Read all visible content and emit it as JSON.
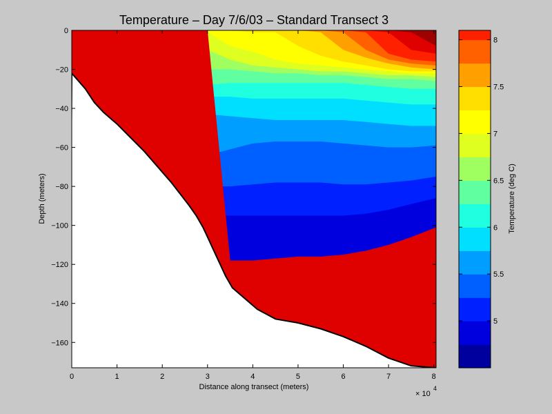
{
  "chart_data": [
    {
      "type": "contour",
      "title": "Temperature – Day 7/6/03 – Standard Transect 3",
      "xlabel": "Distance along transect (meters)",
      "ylabel": "Depth (meters)",
      "x_multiplier_label": "× 10",
      "x_multiplier_exponent": "4",
      "xlim": [
        0,
        80500
      ],
      "ylim": [
        -173,
        0
      ],
      "x_ticks": [
        0,
        10000,
        20000,
        30000,
        40000,
        50000,
        60000,
        70000,
        80000
      ],
      "x_tick_labels": [
        "0",
        "1",
        "2",
        "3",
        "4",
        "5",
        "6",
        "7",
        "8"
      ],
      "y_ticks": [
        0,
        -20,
        -40,
        -60,
        -80,
        -100,
        -120,
        -140,
        -160
      ],
      "y_tick_labels": [
        "0",
        "−20",
        "−40",
        "−60",
        "−80",
        "−100",
        "−120",
        "−140",
        "−160"
      ],
      "bottom_profile": [
        [
          0,
          -22
        ],
        [
          3000,
          -30
        ],
        [
          5000,
          -37
        ],
        [
          7000,
          -42
        ],
        [
          10000,
          -48
        ],
        [
          13000,
          -55
        ],
        [
          16000,
          -62
        ],
        [
          19000,
          -70
        ],
        [
          22000,
          -78
        ],
        [
          24000,
          -84
        ],
        [
          26000,
          -90
        ],
        [
          27500,
          -95
        ],
        [
          29000,
          -101
        ],
        [
          30000,
          -106
        ],
        [
          32000,
          -116
        ],
        [
          34000,
          -126
        ],
        [
          35500,
          -132
        ],
        [
          38000,
          -137
        ],
        [
          41000,
          -143
        ],
        [
          45000,
          -148
        ],
        [
          50000,
          -150
        ],
        [
          55000,
          -153
        ],
        [
          60000,
          -157
        ],
        [
          65000,
          -162
        ],
        [
          70000,
          -168
        ],
        [
          75000,
          -172
        ],
        [
          80500,
          -173
        ]
      ],
      "isotherm_depths": {
        "x": [
          0,
          5000,
          10000,
          15000,
          20000,
          25000,
          30000,
          35000,
          40000,
          45000,
          50000,
          55000,
          60000,
          65000,
          70000,
          75000,
          80500
        ],
        "depths_by_level": {
          "8.0": [
            null,
            null,
            null,
            null,
            null,
            null,
            null,
            null,
            null,
            null,
            null,
            null,
            null,
            null,
            null,
            -1,
            -8
          ],
          "7.75": [
            null,
            null,
            null,
            null,
            null,
            null,
            null,
            null,
            null,
            null,
            null,
            null,
            null,
            null,
            -1,
            -10,
            -12
          ],
          "7.5": [
            null,
            null,
            null,
            null,
            null,
            null,
            null,
            null,
            null,
            null,
            null,
            null,
            null,
            -1,
            -12,
            -15,
            -16
          ],
          "7.25": [
            null,
            null,
            null,
            null,
            null,
            null,
            null,
            null,
            null,
            null,
            null,
            null,
            -1,
            -10,
            -15,
            -17,
            -18
          ],
          "7.0": [
            null,
            null,
            null,
            null,
            null,
            null,
            null,
            null,
            null,
            null,
            null,
            -1,
            -10,
            -14,
            -17,
            -19,
            -20
          ],
          "6.75": [
            null,
            null,
            null,
            null,
            null,
            null,
            null,
            null,
            -1,
            -1,
            -8,
            -13,
            -16,
            -18,
            -20,
            -21,
            -21
          ],
          "6.5": [
            -7,
            -13,
            -2,
            -1,
            -1,
            -1,
            -1,
            -8,
            -11,
            -15,
            -17,
            -18,
            -19,
            -20,
            -21,
            -22,
            -22
          ],
          "6.25": [
            -11,
            -16,
            -16,
            -15,
            -9,
            -6,
            -10,
            -15,
            -18,
            -19,
            -20,
            -21,
            -21,
            -22,
            -23,
            -23,
            -24
          ],
          "6.0": [
            -16,
            -21,
            -21,
            -21,
            -20,
            -20,
            -20,
            -20,
            -21,
            -22,
            -22,
            -23,
            -23,
            -24,
            -25,
            -25,
            -26
          ],
          "5.75": [
            -20,
            -26,
            -29,
            -29,
            -29,
            -28,
            -28,
            -27,
            -27,
            -27,
            -27,
            -27,
            -27,
            -28,
            -29,
            -30,
            -30
          ],
          "5.5": [
            null,
            -33,
            -35,
            -36,
            -36,
            -35,
            -34,
            -34,
            -35,
            -35,
            -35,
            -35,
            -35,
            -36,
            -37,
            -38,
            -38
          ],
          "5.25": [
            null,
            null,
            -45,
            -48,
            -47,
            -48,
            -43,
            -44,
            -45,
            -46,
            -46,
            -46,
            -46,
            -47,
            -48,
            -49,
            -49
          ],
          "5.0": [
            null,
            null,
            null,
            -62,
            -57,
            -65,
            -64,
            -61,
            -58,
            -57,
            -57,
            -57,
            -58,
            -59,
            -60,
            -60,
            -59
          ],
          "4.75": [
            null,
            null,
            null,
            null,
            -72,
            -78,
            -80,
            -80,
            -79,
            -78,
            -78,
            -78,
            -79,
            -79,
            -78,
            -77,
            -75
          ],
          "4.5": [
            null,
            null,
            null,
            null,
            null,
            null,
            -95,
            -95,
            -95,
            -95,
            -95,
            -95,
            -95,
            -94,
            -92,
            -89,
            -86
          ],
          "4.25": [
            null,
            null,
            null,
            null,
            null,
            null,
            null,
            -118,
            -118,
            -117,
            -116,
            -116,
            -115,
            -113,
            -110,
            -106,
            -101
          ]
        }
      },
      "colorbar": {
        "label": "Temperature (deg C)",
        "clim": [
          4.5,
          8.1
        ],
        "ticks": [
          5,
          5.5,
          6,
          6.5,
          7,
          7.5,
          8
        ],
        "tick_labels": [
          "5",
          "5.5",
          "6",
          "6.5",
          "7",
          "7.5",
          "8"
        ],
        "levels": [
          4.5,
          4.75,
          5.0,
          5.25,
          5.5,
          5.75,
          6.0,
          6.25,
          6.5,
          6.75,
          7.0,
          7.25,
          7.5,
          7.75,
          8.0
        ],
        "colors": [
          "#00009f",
          "#0000df",
          "#0020ff",
          "#0060ff",
          "#009fff",
          "#00dfff",
          "#20ffdf",
          "#60ffa0",
          "#9fff60",
          "#dfff20",
          "#ffff00",
          "#ffdf00",
          "#ff9f00",
          "#ff6000",
          "#ff2000",
          "#df0000",
          "#9f0000"
        ]
      },
      "colors": {
        "figure_background": "#c8c8c8",
        "seabed": "#ffffff",
        "axes_line": "#000000"
      }
    }
  ]
}
